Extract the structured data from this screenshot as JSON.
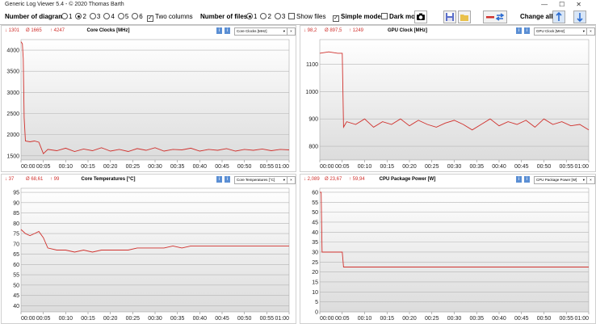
{
  "app": {
    "title": "Generic Log Viewer 5.4 - © 2020 Thomas Barth"
  },
  "toolbar": {
    "diagrams_label": "Number of diagrams",
    "diagram_options": [
      "1",
      "2",
      "3",
      "4",
      "5",
      "6"
    ],
    "diagrams_selected": "2",
    "two_columns_label": "Two columns",
    "files_label": "Number of files",
    "file_options": [
      "1",
      "2",
      "3"
    ],
    "files_selected": "1",
    "show_files_label": "Show files",
    "simple_mode_label": "Simple mode",
    "dark_mode_label": "Dark mod",
    "change_all_label": "Change all"
  },
  "colors": {
    "line": "#d0312d",
    "grid": "#b4b4b4",
    "plotbg_top": "#ffffff",
    "plotbg_bottom": "#dcdcdc"
  },
  "panels": [
    {
      "title": "Core Clocks [MHz]",
      "stats": {
        "min": "↓ 1301",
        "avg": "Ø 1665",
        "max": "↑ 4247"
      },
      "select": "Core Clocks [MHz]",
      "chart_data": {
        "type": "line",
        "ylim": [
          1400,
          4250
        ],
        "yticks": [
          1500,
          2000,
          2500,
          3000,
          3500,
          4000
        ],
        "xticks": [
          "00:00",
          "00:05",
          "00:10",
          "00:15",
          "00:20",
          "00:25",
          "00:30",
          "00:35",
          "00:40",
          "00:45",
          "00:50",
          "00:55",
          "01:00"
        ],
        "series": [
          {
            "values": [
              [
                0,
                4200
              ],
              [
                0.3,
                4150
              ],
              [
                0.5,
                3800
              ],
              [
                0.7,
                2400
              ],
              [
                1,
                1850
              ],
              [
                2,
                1830
              ],
              [
                3,
                1850
              ],
              [
                4,
                1820
              ],
              [
                5,
                1550
              ],
              [
                6,
                1650
              ],
              [
                8,
                1620
              ],
              [
                10,
                1680
              ],
              [
                12,
                1600
              ],
              [
                14,
                1660
              ],
              [
                16,
                1620
              ],
              [
                18,
                1690
              ],
              [
                20,
                1610
              ],
              [
                22,
                1650
              ],
              [
                24,
                1600
              ],
              [
                26,
                1670
              ],
              [
                28,
                1630
              ],
              [
                30,
                1690
              ],
              [
                32,
                1610
              ],
              [
                34,
                1650
              ],
              [
                36,
                1640
              ],
              [
                38,
                1680
              ],
              [
                40,
                1610
              ],
              [
                42,
                1650
              ],
              [
                44,
                1630
              ],
              [
                46,
                1670
              ],
              [
                48,
                1610
              ],
              [
                50,
                1650
              ],
              [
                52,
                1630
              ],
              [
                54,
                1660
              ],
              [
                56,
                1620
              ],
              [
                58,
                1650
              ],
              [
                60,
                1640
              ]
            ]
          }
        ]
      }
    },
    {
      "title": "GPU Clock [MHz]",
      "stats": {
        "min": "↓ 98,2",
        "avg": "Ø 897,5",
        "max": "↑ 1249"
      },
      "select": "GPU Clock [MHz]",
      "chart_data": {
        "type": "line",
        "ylim": [
          750,
          1190
        ],
        "yticks": [
          800,
          900,
          1000,
          1100
        ],
        "xticks": [
          "00:00",
          "00:05",
          "00:10",
          "00:15",
          "00:20",
          "00:25",
          "00:30",
          "00:35",
          "00:40",
          "00:45",
          "00:50",
          "00:55",
          "01:00"
        ],
        "series": [
          {
            "values": [
              [
                0,
                1140
              ],
              [
                2,
                1145
              ],
              [
                4,
                1140
              ],
              [
                5,
                1140
              ],
              [
                5.3,
                870
              ],
              [
                6,
                890
              ],
              [
                8,
                880
              ],
              [
                10,
                900
              ],
              [
                12,
                870
              ],
              [
                14,
                890
              ],
              [
                16,
                880
              ],
              [
                18,
                900
              ],
              [
                20,
                875
              ],
              [
                22,
                895
              ],
              [
                24,
                880
              ],
              [
                26,
                870
              ],
              [
                28,
                885
              ],
              [
                30,
                895
              ],
              [
                32,
                880
              ],
              [
                34,
                860
              ],
              [
                36,
                880
              ],
              [
                38,
                900
              ],
              [
                40,
                875
              ],
              [
                42,
                890
              ],
              [
                44,
                880
              ],
              [
                46,
                895
              ],
              [
                48,
                870
              ],
              [
                50,
                900
              ],
              [
                52,
                880
              ],
              [
                54,
                890
              ],
              [
                56,
                875
              ],
              [
                58,
                880
              ],
              [
                60,
                860
              ]
            ]
          }
        ]
      }
    },
    {
      "title": "Core Temperatures [°C]",
      "stats": {
        "min": "↓ 37",
        "avg": "Ø 68,61",
        "max": "↑ 99"
      },
      "select": "Core Temperatures [°C]",
      "chart_data": {
        "type": "line",
        "ylim": [
          37,
          97
        ],
        "yticks": [
          40,
          45,
          50,
          55,
          60,
          65,
          70,
          75,
          80,
          85,
          90,
          95
        ],
        "xticks": [
          "00:00",
          "00:05",
          "00:10",
          "00:15",
          "00:20",
          "00:25",
          "00:30",
          "00:35",
          "00:40",
          "00:45",
          "00:50",
          "00:55",
          "01:00"
        ],
        "series": [
          {
            "values": [
              [
                0,
                77
              ],
              [
                1,
                75
              ],
              [
                2,
                74
              ],
              [
                3,
                75
              ],
              [
                4,
                76
              ],
              [
                5,
                73
              ],
              [
                6,
                68
              ],
              [
                8,
                67
              ],
              [
                10,
                67
              ],
              [
                12,
                66
              ],
              [
                14,
                67
              ],
              [
                16,
                66
              ],
              [
                18,
                67
              ],
              [
                20,
                67
              ],
              [
                22,
                67
              ],
              [
                24,
                67
              ],
              [
                26,
                68
              ],
              [
                28,
                68
              ],
              [
                30,
                68
              ],
              [
                32,
                68
              ],
              [
                34,
                69
              ],
              [
                36,
                68
              ],
              [
                38,
                69
              ],
              [
                40,
                69
              ],
              [
                42,
                69
              ],
              [
                44,
                69
              ],
              [
                46,
                69
              ],
              [
                48,
                69
              ],
              [
                50,
                69
              ],
              [
                52,
                69
              ],
              [
                54,
                69
              ],
              [
                56,
                69
              ],
              [
                58,
                69
              ],
              [
                60,
                69
              ]
            ]
          }
        ]
      }
    },
    {
      "title": "CPU Package Power [W]",
      "stats": {
        "min": "↓ 2,089",
        "avg": "Ø 23,67",
        "max": "↑ 59,94"
      },
      "select": "CPU Package Power [W]",
      "chart_data": {
        "type": "line",
        "ylim": [
          0,
          62
        ],
        "yticks": [
          0,
          5,
          10,
          15,
          20,
          25,
          30,
          35,
          40,
          45,
          50,
          55,
          60
        ],
        "xticks": [
          "00:00",
          "00:05",
          "00:10",
          "00:15",
          "00:20",
          "00:25",
          "00:30",
          "00:35",
          "00:40",
          "00:45",
          "00:50",
          "00:55",
          "01:00"
        ],
        "series": [
          {
            "values": [
              [
                0,
                60
              ],
              [
                0.3,
                60
              ],
              [
                0.5,
                30
              ],
              [
                1,
                30
              ],
              [
                2,
                30
              ],
              [
                3,
                30
              ],
              [
                4,
                30
              ],
              [
                5,
                30
              ],
              [
                5.3,
                22.5
              ],
              [
                10,
                22.5
              ],
              [
                20,
                22.5
              ],
              [
                30,
                22.5
              ],
              [
                40,
                22.5
              ],
              [
                50,
                22.5
              ],
              [
                60,
                22.5
              ]
            ]
          }
        ]
      }
    }
  ]
}
